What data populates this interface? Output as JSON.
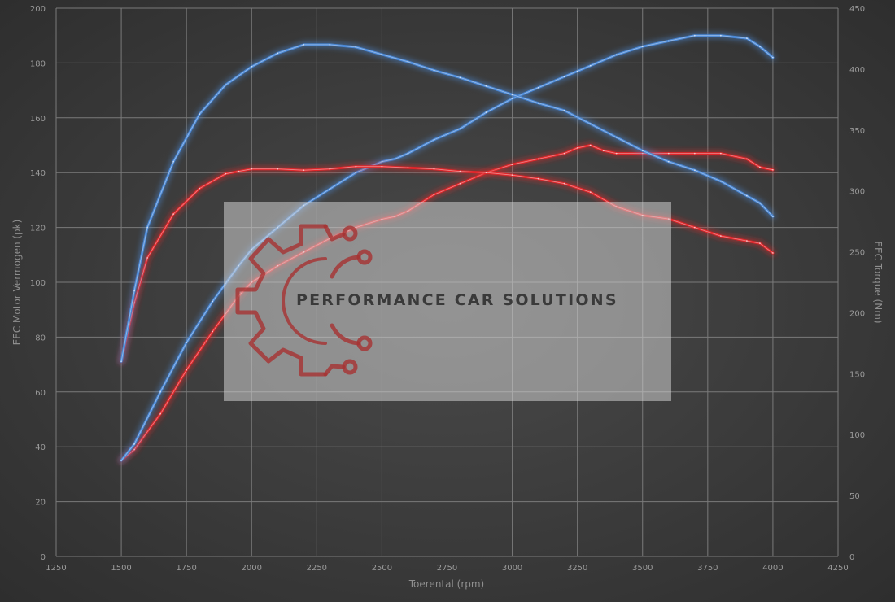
{
  "chart_data": {
    "type": "line",
    "xlabel": "Toerental (rpm)",
    "ylabel_left": "EEC Motor Vermogen (pk)",
    "ylabel_right": "EEC Torque (Nm)",
    "xlim": [
      1250,
      4250
    ],
    "ylim_left": [
      0,
      200
    ],
    "ylim_right": [
      0,
      450
    ],
    "x_ticks": [
      "1250",
      "1500",
      "1750",
      "2000",
      "2250",
      "2500",
      "2750",
      "3000",
      "3250",
      "3500",
      "3750",
      "4000",
      "4250"
    ],
    "y_left_ticks": [
      "0",
      "20",
      "40",
      "60",
      "80",
      "100",
      "120",
      "140",
      "160",
      "180",
      "200"
    ],
    "y_right_ticks": [
      "0",
      "50",
      "100",
      "150",
      "200",
      "250",
      "300",
      "350",
      "400",
      "450"
    ],
    "grid": true,
    "legend": "none",
    "series": [
      {
        "axis": "left",
        "color": "#e0262a",
        "x": [
          1500,
          1550,
          1650,
          1750,
          1850,
          1950,
          2000,
          2100,
          2200,
          2300,
          2400,
          2500,
          2550,
          2600,
          2700,
          2800,
          2900,
          3000,
          3100,
          3200,
          3250,
          3300,
          3350,
          3400,
          3500,
          3600,
          3700,
          3800,
          3900,
          3950,
          4000
        ],
        "values": [
          35,
          39,
          52,
          68,
          82,
          95,
          100,
          106,
          111,
          116,
          120,
          123,
          124,
          126,
          132,
          136,
          140,
          143,
          145,
          147,
          149,
          150,
          148,
          147,
          147,
          147,
          147,
          147,
          145,
          142,
          141
        ]
      },
      {
        "axis": "left",
        "color": "#4a88d6",
        "x": [
          1500,
          1550,
          1650,
          1750,
          1850,
          1950,
          2000,
          2100,
          2200,
          2300,
          2400,
          2500,
          2550,
          2600,
          2700,
          2800,
          2900,
          3000,
          3100,
          3200,
          3250,
          3300,
          3400,
          3500,
          3600,
          3700,
          3800,
          3900,
          3950,
          4000
        ],
        "values": [
          35,
          41,
          60,
          78,
          93,
          106,
          112,
          120,
          128,
          134,
          140,
          144,
          145,
          147,
          152,
          156,
          162,
          167,
          171,
          175,
          177,
          179,
          183,
          186,
          188,
          190,
          190,
          189,
          186,
          182
        ]
      },
      {
        "axis": "right",
        "color": "#e0262a",
        "x": [
          1500,
          1550,
          1600,
          1700,
          1800,
          1900,
          1950,
          2000,
          2100,
          2200,
          2300,
          2400,
          2500,
          2600,
          2700,
          2800,
          2900,
          3000,
          3100,
          3200,
          3300,
          3400,
          3500,
          3600,
          3700,
          3800,
          3900,
          3950,
          4000
        ],
        "values": [
          160,
          208,
          245,
          281,
          302,
          314,
          316,
          318,
          318,
          317,
          318,
          320,
          320,
          319,
          318,
          316,
          315,
          313,
          310,
          306,
          299,
          287,
          280,
          277,
          270,
          263,
          259,
          257,
          249
        ]
      },
      {
        "axis": "right",
        "color": "#4a88d6",
        "x": [
          1500,
          1550,
          1600,
          1700,
          1800,
          1900,
          2000,
          2100,
          2200,
          2300,
          2400,
          2500,
          2600,
          2700,
          2800,
          2900,
          3000,
          3100,
          3200,
          3300,
          3400,
          3500,
          3600,
          3700,
          3800,
          3900,
          3950,
          4000
        ],
        "values": [
          160,
          218,
          270,
          324,
          363,
          387,
          402,
          413,
          420,
          420,
          418,
          412,
          406,
          399,
          393,
          386,
          379,
          372,
          366,
          355,
          344,
          333,
          324,
          317,
          308,
          296,
          290,
          279
        ]
      }
    ]
  },
  "watermark": {
    "text": "PERFORMANCE CAR SOLUTIONS",
    "logo_icon": "gear-circuit-logo-icon"
  }
}
